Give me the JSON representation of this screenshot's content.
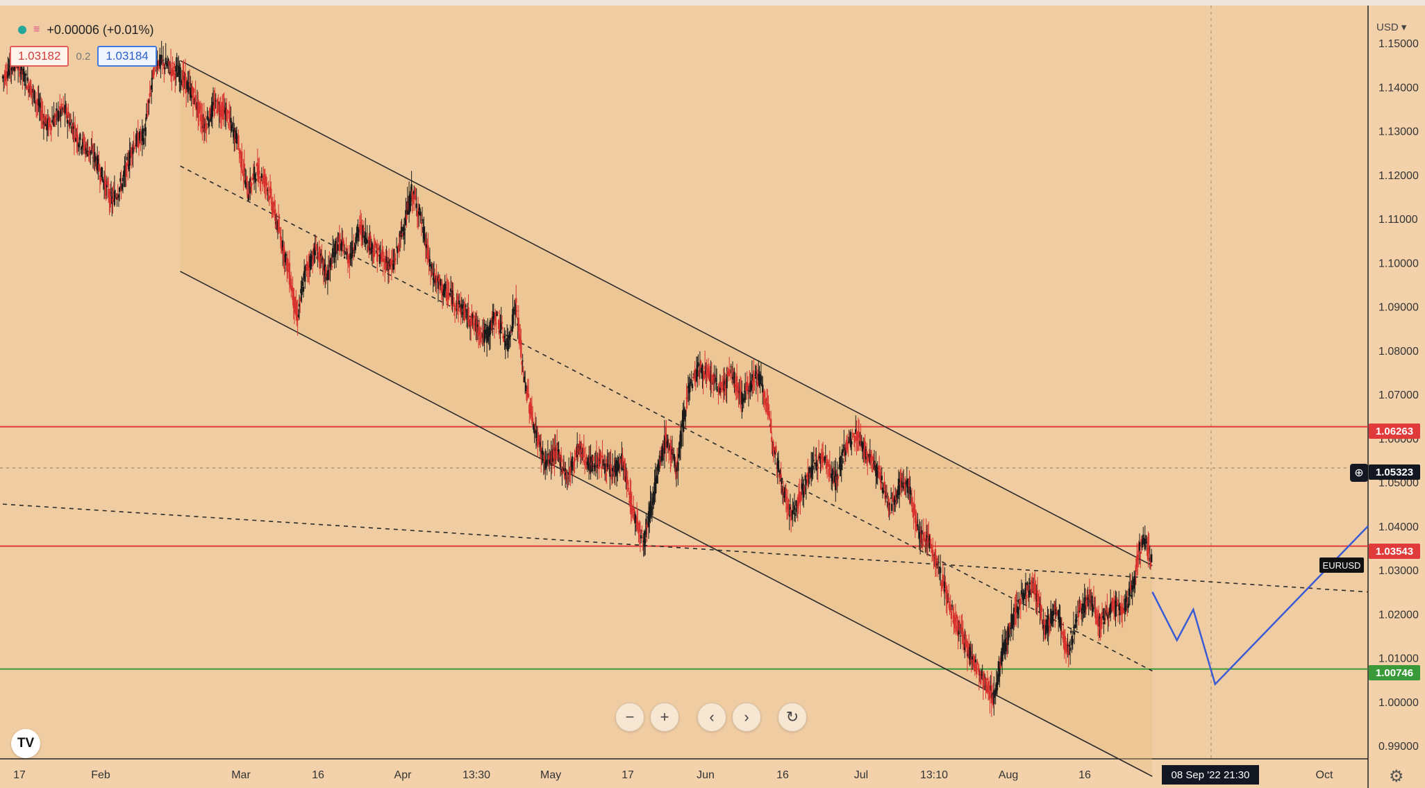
{
  "chart_data": {
    "type": "candlestick",
    "symbol": "EURUSD",
    "currency": "USD",
    "header_change": "+0.00006 (+0.01%)",
    "quotes": {
      "sell": "1.03182",
      "spread": "0.2",
      "buy": "1.03184"
    },
    "y_axis": {
      "ticks": [
        "1.15000",
        "1.14000",
        "1.13000",
        "1.12000",
        "1.11000",
        "1.10000",
        "1.09000",
        "1.08000",
        "1.07000",
        "1.06000",
        "1.05000",
        "1.04000",
        "1.03000",
        "1.02000",
        "1.01000",
        "1.00000",
        "0.99000"
      ],
      "ylim": [
        0.99,
        1.15
      ]
    },
    "x_axis": {
      "ticks": [
        "17",
        "Feb",
        "Mar",
        "16",
        "Apr",
        "13:30",
        "May",
        "17",
        "Jun",
        "16",
        "Jul",
        "13:10",
        "Aug",
        "16",
        "Oct"
      ],
      "crosshair_label": "08 Sep '22  21:30"
    },
    "price_lines": [
      {
        "label": "1.06263",
        "value": 1.06263,
        "color": "#e03a3a"
      },
      {
        "label": "1.05323",
        "value": 1.05323,
        "color": "#131722",
        "style": "dashed"
      },
      {
        "label": "1.03543",
        "value": 1.03543,
        "color": "#e03a3a"
      },
      {
        "label": "1.00746",
        "value": 1.00746,
        "color": "#3a9a3a"
      }
    ],
    "symbol_tag": "EURUSD",
    "price_path": [
      [
        0,
        1.142
      ],
      [
        10,
        1.146
      ],
      [
        22,
        1.139
      ],
      [
        33,
        1.131
      ],
      [
        45,
        1.135
      ],
      [
        56,
        1.128
      ],
      [
        68,
        1.124
      ],
      [
        80,
        1.114
      ],
      [
        88,
        1.118
      ],
      [
        96,
        1.127
      ],
      [
        104,
        1.129
      ],
      [
        112,
        1.146
      ],
      [
        120,
        1.145
      ],
      [
        130,
        1.143
      ],
      [
        140,
        1.138
      ],
      [
        148,
        1.131
      ],
      [
        156,
        1.136
      ],
      [
        164,
        1.134
      ],
      [
        172,
        1.128
      ],
      [
        180,
        1.116
      ],
      [
        186,
        1.121
      ],
      [
        194,
        1.118
      ],
      [
        202,
        1.108
      ],
      [
        210,
        1.098
      ],
      [
        216,
        1.087
      ],
      [
        222,
        1.098
      ],
      [
        230,
        1.103
      ],
      [
        238,
        1.097
      ],
      [
        246,
        1.105
      ],
      [
        254,
        1.101
      ],
      [
        262,
        1.108
      ],
      [
        270,
        1.104
      ],
      [
        278,
        1.101
      ],
      [
        286,
        1.099
      ],
      [
        294,
        1.108
      ],
      [
        300,
        1.116
      ],
      [
        306,
        1.111
      ],
      [
        314,
        1.098
      ],
      [
        322,
        1.094
      ],
      [
        330,
        1.092
      ],
      [
        338,
        1.089
      ],
      [
        346,
        1.086
      ],
      [
        354,
        1.083
      ],
      [
        362,
        1.088
      ],
      [
        370,
        1.081
      ],
      [
        376,
        1.091
      ],
      [
        382,
        1.074
      ],
      [
        390,
        1.062
      ],
      [
        398,
        1.054
      ],
      [
        406,
        1.057
      ],
      [
        414,
        1.051
      ],
      [
        422,
        1.058
      ],
      [
        430,
        1.054
      ],
      [
        438,
        1.055
      ],
      [
        446,
        1.052
      ],
      [
        454,
        1.055
      ],
      [
        462,
        1.043
      ],
      [
        470,
        1.037
      ],
      [
        478,
        1.049
      ],
      [
        486,
        1.06
      ],
      [
        494,
        1.053
      ],
      [
        502,
        1.071
      ],
      [
        510,
        1.076
      ],
      [
        518,
        1.074
      ],
      [
        526,
        1.071
      ],
      [
        534,
        1.075
      ],
      [
        542,
        1.069
      ],
      [
        550,
        1.074
      ],
      [
        556,
        1.073
      ],
      [
        562,
        1.064
      ],
      [
        570,
        1.051
      ],
      [
        578,
        1.042
      ],
      [
        586,
        1.048
      ],
      [
        594,
        1.054
      ],
      [
        602,
        1.056
      ],
      [
        610,
        1.05
      ],
      [
        618,
        1.058
      ],
      [
        626,
        1.061
      ],
      [
        634,
        1.056
      ],
      [
        642,
        1.052
      ],
      [
        650,
        1.044
      ],
      [
        658,
        1.05
      ],
      [
        664,
        1.049
      ],
      [
        672,
        1.038
      ],
      [
        680,
        1.036
      ],
      [
        688,
        1.028
      ],
      [
        696,
        1.02
      ],
      [
        704,
        1.014
      ],
      [
        712,
        1.009
      ],
      [
        720,
        1.004
      ],
      [
        726,
        1.001
      ],
      [
        732,
        1.01
      ],
      [
        740,
        1.019
      ],
      [
        748,
        1.025
      ],
      [
        756,
        1.026
      ],
      [
        764,
        1.016
      ],
      [
        772,
        1.022
      ],
      [
        780,
        1.011
      ],
      [
        788,
        1.02
      ],
      [
        796,
        1.024
      ],
      [
        804,
        1.018
      ],
      [
        812,
        1.022
      ],
      [
        820,
        1.02
      ],
      [
        828,
        1.026
      ],
      [
        832,
        1.034
      ],
      [
        836,
        1.037
      ],
      [
        842,
        1.032
      ]
    ],
    "projection": [
      [
        842,
        1.025
      ],
      [
        860,
        1.014
      ],
      [
        872,
        1.021
      ],
      [
        888,
        1.004
      ],
      [
        1000,
        1.04
      ]
    ],
    "channel": {
      "upper": [
        [
          130,
          1.146
        ],
        [
          842,
          1.031
        ]
      ],
      "lower": [
        [
          130,
          1.098
        ],
        [
          842,
          0.983
        ]
      ],
      "mid": [
        [
          130,
          1.122
        ],
        [
          842,
          1.007
        ]
      ]
    },
    "trendline": [
      [
        0,
        1.045
      ],
      [
        1000,
        1.025
      ]
    ]
  }
}
